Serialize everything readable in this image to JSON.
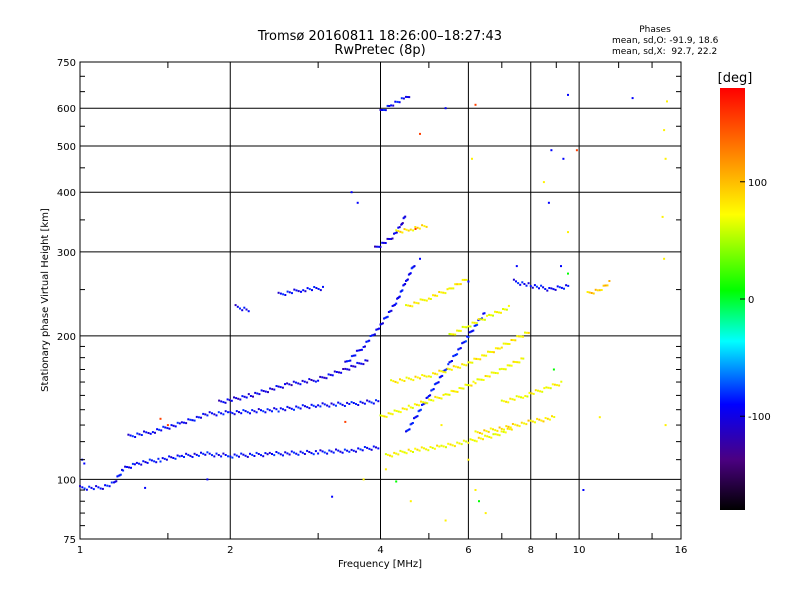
{
  "header": {
    "title_line1": "Tromsø 20160811 18:26:00–18:27:43",
    "title_line2": "RwPretec (8p)"
  },
  "stats": {
    "heading": "Phases",
    "line_o": "mean, sd,O: -91.9, 18.6",
    "line_x": "mean, sd,X:  92.7, 22.2"
  },
  "chart_data": {
    "type": "scatter",
    "xlabel": "Frequency [MHz]",
    "ylabel": "Stationary phase Virtual Height [km]",
    "x_scale": "log",
    "y_scale": "log",
    "xlim": [
      1,
      16
    ],
    "ylim": [
      75,
      750
    ],
    "x_ticks": [
      1,
      2,
      4,
      6,
      8,
      10,
      16
    ],
    "x_tick_labels": [
      "1",
      "2",
      "4",
      "6",
      "8",
      "10",
      "16"
    ],
    "y_ticks": [
      75,
      100,
      200,
      300,
      400,
      500,
      600,
      750
    ],
    "y_tick_labels": [
      "75",
      "100",
      "200",
      "300",
      "400",
      "500",
      "600",
      "750"
    ],
    "grid": true,
    "colorbar": {
      "label": "[deg]",
      "min": -180,
      "max": 180,
      "ticks": [
        100,
        0,
        -100
      ],
      "tick_labels": [
        "100",
        "0",
        "-100"
      ],
      "colormap": [
        "#000000",
        "#4b0082",
        "#0000ff",
        "#00ffff",
        "#00ff00",
        "#ffff00",
        "#ff8000",
        "#ff0000"
      ]
    },
    "echo_traces": [
      {
        "phase": -100,
        "points": [
          [
            1.0,
            96
          ],
          [
            1.1,
            96
          ],
          [
            1.17,
            98
          ],
          [
            1.22,
            105
          ],
          [
            1.3,
            108
          ],
          [
            1.45,
            110
          ],
          [
            1.6,
            112
          ],
          [
            1.8,
            113
          ],
          [
            2.0,
            112
          ],
          [
            2.4,
            113
          ],
          [
            3.0,
            114
          ],
          [
            3.5,
            115
          ],
          [
            4.0,
            117
          ]
        ]
      },
      {
        "phase": -100,
        "points": [
          [
            1.25,
            123
          ],
          [
            1.4,
            126
          ],
          [
            1.6,
            131
          ],
          [
            1.8,
            137
          ],
          [
            2.0,
            138
          ],
          [
            2.5,
            140
          ],
          [
            3.0,
            143
          ],
          [
            3.5,
            144
          ],
          [
            4.0,
            146
          ]
        ]
      },
      {
        "phase": -110,
        "points": [
          [
            1.9,
            145
          ],
          [
            2.2,
            150
          ],
          [
            2.6,
            158
          ],
          [
            3.0,
            162
          ],
          [
            3.4,
            170
          ],
          [
            3.8,
            178
          ]
        ]
      },
      {
        "phase": -100,
        "points": [
          [
            3.4,
            175
          ],
          [
            3.7,
            190
          ],
          [
            4.0,
            210
          ],
          [
            4.3,
            235
          ],
          [
            4.5,
            260
          ],
          [
            4.7,
            285
          ]
        ]
      },
      {
        "phase": -110,
        "points": [
          [
            3.9,
            305
          ],
          [
            4.2,
            320
          ],
          [
            4.4,
            340
          ],
          [
            4.5,
            360
          ]
        ]
      },
      {
        "phase": -100,
        "points": [
          [
            4.0,
            590
          ],
          [
            4.2,
            610
          ],
          [
            4.5,
            630
          ],
          [
            4.6,
            640
          ]
        ]
      },
      {
        "phase": -105,
        "points": [
          [
            2.05,
            230
          ],
          [
            2.2,
            226
          ]
        ]
      },
      {
        "phase": -100,
        "points": [
          [
            2.5,
            244
          ],
          [
            2.8,
            250
          ],
          [
            3.1,
            252
          ]
        ]
      },
      {
        "phase": -95,
        "points": [
          [
            4.5,
            125
          ],
          [
            5.0,
            150
          ],
          [
            5.5,
            175
          ],
          [
            6.0,
            200
          ],
          [
            6.5,
            225
          ]
        ]
      },
      {
        "phase": 90,
        "points": [
          [
            4.1,
            112
          ],
          [
            4.6,
            115
          ],
          [
            5.3,
            117
          ],
          [
            6.0,
            120
          ],
          [
            6.8,
            124
          ],
          [
            7.4,
            128
          ]
        ]
      },
      {
        "phase": 90,
        "points": [
          [
            4.0,
            135
          ],
          [
            4.6,
            142
          ],
          [
            5.4,
            150
          ],
          [
            6.2,
            160
          ],
          [
            7.0,
            170
          ],
          [
            7.8,
            180
          ]
        ]
      },
      {
        "phase": 95,
        "points": [
          [
            4.2,
            160
          ],
          [
            5.0,
            165
          ],
          [
            6.0,
            175
          ],
          [
            7.0,
            190
          ],
          [
            8.0,
            205
          ]
        ]
      },
      {
        "phase": 100,
        "points": [
          [
            6.2,
            125
          ],
          [
            7.0,
            128
          ],
          [
            8.0,
            132
          ],
          [
            9.0,
            135
          ]
        ]
      },
      {
        "phase": 90,
        "points": [
          [
            7.0,
            145
          ],
          [
            7.8,
            150
          ],
          [
            8.6,
            155
          ],
          [
            9.3,
            160
          ]
        ]
      },
      {
        "phase": 95,
        "points": [
          [
            4.5,
            230
          ],
          [
            5.0,
            240
          ],
          [
            5.5,
            250
          ],
          [
            6.0,
            265
          ]
        ]
      },
      {
        "phase": 85,
        "points": [
          [
            5.5,
            200
          ],
          [
            6.0,
            210
          ],
          [
            6.6,
            220
          ],
          [
            7.3,
            230
          ]
        ]
      },
      {
        "phase": 100,
        "points": [
          [
            4.3,
            330
          ],
          [
            4.6,
            335
          ],
          [
            5.0,
            340
          ]
        ]
      },
      {
        "phase": -100,
        "points": [
          [
            7.4,
            260
          ],
          [
            8.0,
            255
          ],
          [
            8.8,
            250
          ],
          [
            9.6,
            255
          ]
        ]
      },
      {
        "phase": 110,
        "points": [
          [
            10.4,
            245
          ],
          [
            11.0,
            250
          ],
          [
            11.6,
            260
          ]
        ]
      }
    ],
    "scattered_echoes": [
      {
        "phase": -100,
        "points": [
          [
            1.01,
            110
          ],
          [
            1.02,
            108
          ],
          [
            1.8,
            100
          ],
          [
            1.35,
            96
          ],
          [
            3.5,
            400
          ],
          [
            3.6,
            380
          ],
          [
            5.4,
            600
          ],
          [
            9.5,
            640
          ],
          [
            12.8,
            630
          ],
          [
            8.8,
            490
          ],
          [
            9.3,
            470
          ],
          [
            8.7,
            380
          ],
          [
            4.8,
            290
          ],
          [
            6.0,
            260
          ],
          [
            7.5,
            280
          ],
          [
            9.2,
            280
          ],
          [
            10.2,
            95
          ],
          [
            3.2,
            92
          ]
        ]
      },
      {
        "phase": 95,
        "points": [
          [
            15.0,
            620
          ],
          [
            14.8,
            540
          ],
          [
            14.9,
            470
          ],
          [
            14.7,
            355
          ],
          [
            14.8,
            290
          ],
          [
            9.5,
            330
          ],
          [
            8.5,
            420
          ],
          [
            6.1,
            470
          ],
          [
            6.0,
            110
          ],
          [
            4.1,
            105
          ],
          [
            3.7,
            100
          ],
          [
            5.3,
            130
          ],
          [
            11.0,
            135
          ],
          [
            14.9,
            130
          ],
          [
            6.2,
            95
          ],
          [
            4.6,
            90
          ],
          [
            6.5,
            85
          ],
          [
            5.4,
            82
          ]
        ]
      },
      {
        "phase": 160,
        "points": [
          [
            6.2,
            610
          ],
          [
            4.8,
            530
          ],
          [
            4.7,
            335
          ],
          [
            9.9,
            490
          ],
          [
            3.4,
            132
          ],
          [
            1.45,
            134
          ],
          [
            1.5,
            130
          ]
        ]
      },
      {
        "phase": 0,
        "points": [
          [
            8.9,
            170
          ],
          [
            9.5,
            270
          ],
          [
            6.3,
            90
          ],
          [
            4.3,
            99
          ]
        ]
      }
    ]
  }
}
